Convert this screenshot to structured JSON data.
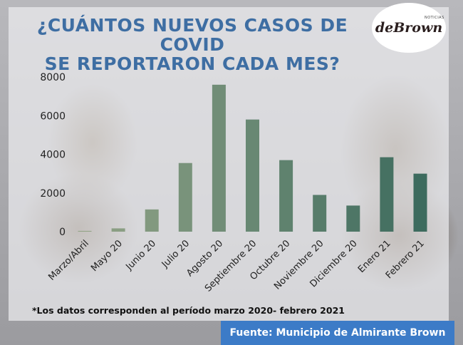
{
  "title_line1": "¿CUÁNTOS NUEVOS CASOS DE COVID",
  "title_line2": "SE REPORTARON CADA MES?",
  "logo": {
    "text": "deBrown",
    "small_text": "NOTICIAS"
  },
  "note": "*Los datos corresponden al período marzo 2020- febrero 2021",
  "source": "Fuente: Municipio de Almirante Brown",
  "colors": {
    "title": "#3e6ea3",
    "source_box": "#3c7bc7",
    "bars_start": "#93a487",
    "bars_end": "#3d6b5e"
  },
  "chart_data": {
    "type": "bar",
    "categories": [
      "Marzo/Abril",
      "Mayo 20",
      "Junio 20",
      "Julio 20",
      "Agosto 20",
      "Septiembre 20",
      "Octubre 20",
      "Noviembre 20",
      "Diciembre 20",
      "Enero 21",
      "Febrero 21"
    ],
    "values": [
      40,
      170,
      1150,
      3550,
      7600,
      5800,
      3700,
      1900,
      1350,
      3850,
      3000
    ],
    "yticks": [
      0,
      2000,
      4000,
      6000,
      8000
    ],
    "ylim": [
      0,
      8000
    ],
    "grid": false,
    "xlabel": "",
    "ylabel": ""
  }
}
